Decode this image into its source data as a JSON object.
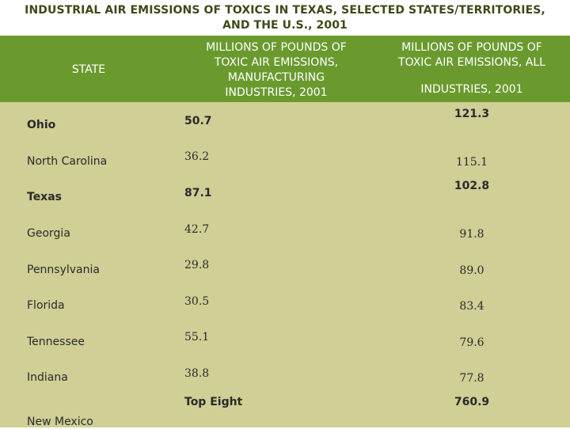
{
  "title_line1": "INDUSTRIAL AIR EMISSIONS OF TOXICS IN TEXAS, SELECTED STATES/TERRITORIES,",
  "title_line2": "AND THE U.S., 2001",
  "header": {
    "state": "STATE",
    "manufacturing": [
      "MILLIONS OF POUNDS OF",
      "TOXIC AIR EMISSIONS,",
      "MANUFACTURING",
      "INDUSTRIES, 2001"
    ],
    "all_line1": [
      "MILLIONS OF POUNDS OF",
      "TOXIC AIR EMISSIONS, ALL"
    ],
    "all_line2": "INDUSTRIES, 2001"
  },
  "rows": [
    {
      "state": "Ohio",
      "manufacturing": "50.7",
      "all": "121.3"
    },
    {
      "state": "North Carolina",
      "manufacturing": "36.2",
      "all": "115.1"
    },
    {
      "state": "Texas",
      "manufacturing": "87.1",
      "all": "102.8"
    },
    {
      "state": "Georgia",
      "manufacturing": "42.7",
      "all": "91.8"
    },
    {
      "state": "Pennsylvania",
      "manufacturing": "29.8",
      "all": "89.0"
    },
    {
      "state": "Florida",
      "manufacturing": "30.5",
      "all": "83.4"
    },
    {
      "state": "Tennessee",
      "manufacturing": "55.1",
      "all": "79.6"
    },
    {
      "state": "Indiana",
      "manufacturing": "38.8",
      "all": "77.8"
    }
  ],
  "summary": {
    "label": "Top Eight",
    "all": "760.9"
  },
  "partial_row": {
    "state": "New Mexico"
  },
  "colors": {
    "header_bg": "#6a9a2e",
    "body_bg": "#cfcf96",
    "title_text": "#3e4a18"
  }
}
